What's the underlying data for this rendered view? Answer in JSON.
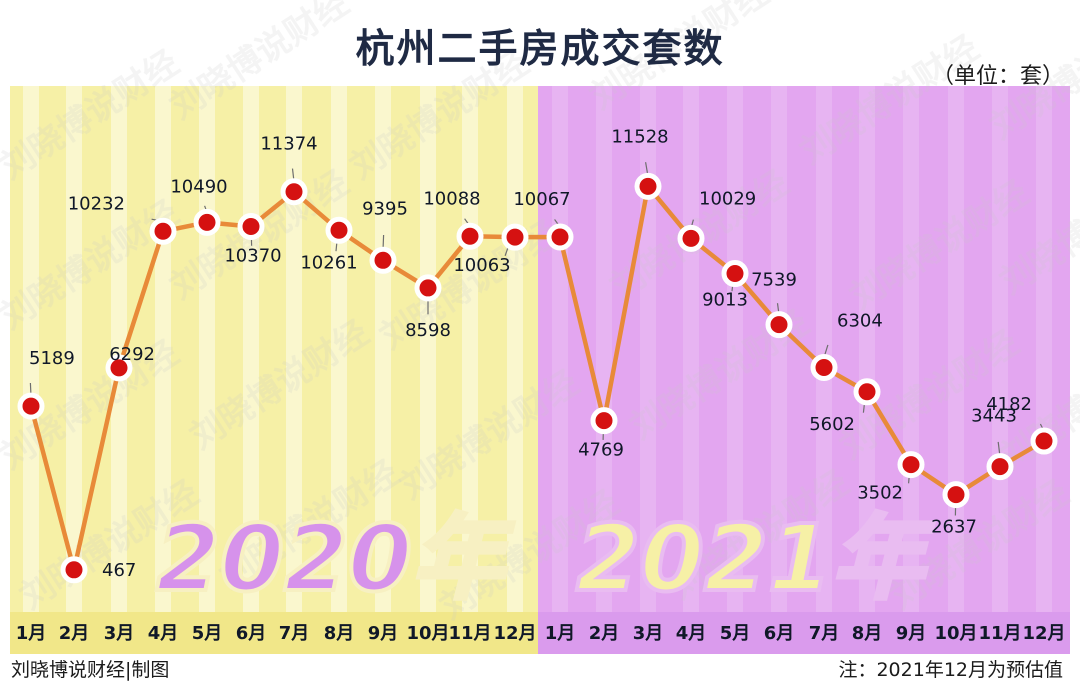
{
  "title": "杭州二手房成交套数",
  "unit": "（单位：套）",
  "footer_left": "刘晓博说财经|制图",
  "footer_right": "注：2021年12月为预估值",
  "watermark": "刘晓博说财经",
  "colors": {
    "panel_2020": "#f6f0a6",
    "panel_2021": "#e3a6f0",
    "line": "#e88a39",
    "point": "#d51111",
    "point_stroke": "#ffffff",
    "year_2020_fill": "#d692eb",
    "year_2021_fill": "#f6f0a6",
    "label": "#101828"
  },
  "chart_data": {
    "type": "line",
    "categories": [
      "1月",
      "2月",
      "3月",
      "4月",
      "5月",
      "6月",
      "7月",
      "8月",
      "9月",
      "10月",
      "11月",
      "12月",
      "1月",
      "2月",
      "3月",
      "4月",
      "5月",
      "6月",
      "7月",
      "8月",
      "9月",
      "10月",
      "11月",
      "12月"
    ],
    "series": [
      {
        "values": [
          5189,
          467,
          6292,
          10232,
          10490,
          10370,
          11374,
          10261,
          9395,
          8598,
          10088,
          10063,
          10067,
          4769,
          11528,
          10029,
          9013,
          7539,
          6304,
          5602,
          3502,
          2637,
          3443,
          4182
        ]
      }
    ],
    "year_labels": [
      "2020年",
      "2021年"
    ],
    "ylim": [
      0,
      12000
    ]
  }
}
